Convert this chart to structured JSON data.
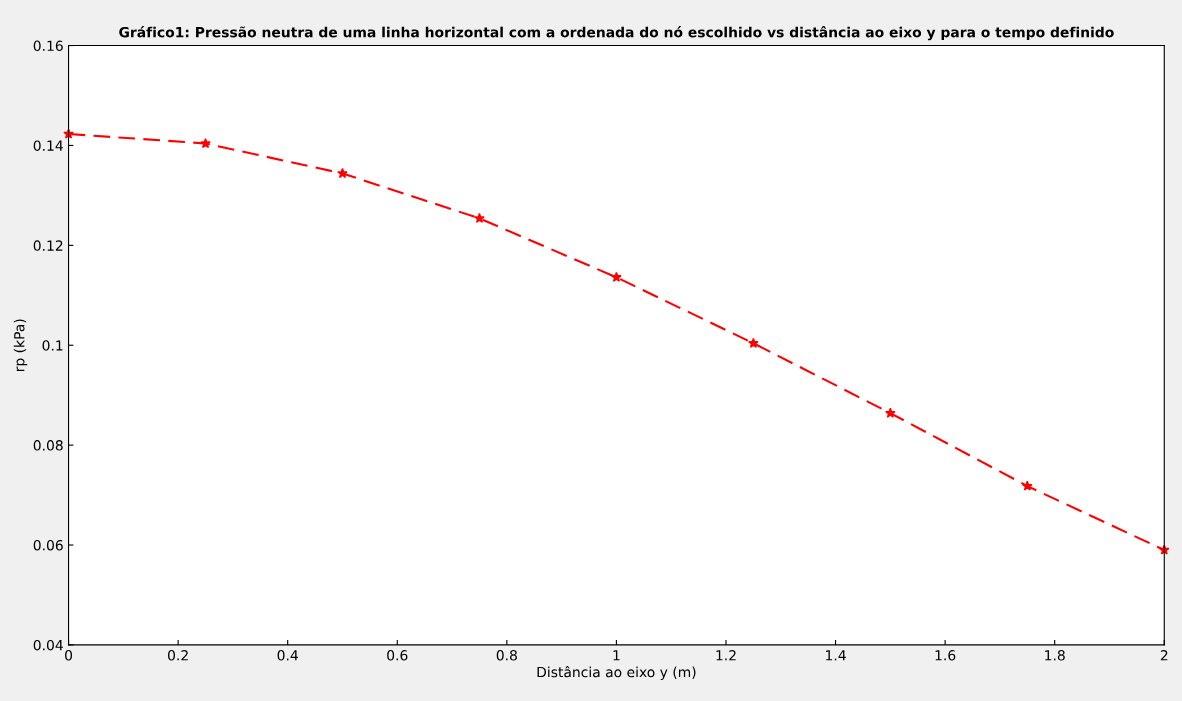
{
  "chart_data": {
    "type": "line",
    "title": "Gráfico1: Pressão neutra de uma linha horizontal com a ordenada do nó escolhido vs distância ao eixo y para o tempo definido",
    "xlabel": "Distância ao eixo y (m)",
    "ylabel": "rp (kPa)",
    "x": [
      0,
      0.25,
      0.5,
      0.75,
      1,
      1.25,
      1.5,
      1.75,
      2
    ],
    "series": [
      {
        "color": "#ff0000",
        "values": [
          0.1423,
          0.1404,
          0.1344,
          0.1254,
          0.1136,
          0.1004,
          0.0864,
          0.0718,
          0.059
        ]
      }
    ],
    "marker": "star",
    "line_style": "dashed",
    "xlim": [
      0,
      2
    ],
    "xticks": [
      0,
      0.2,
      0.4,
      0.6,
      0.8,
      1,
      1.2,
      1.4,
      1.6,
      1.8,
      2
    ],
    "ylim": [
      0.04,
      0.16
    ],
    "yticks": [
      0.04,
      0.06,
      0.08,
      0.1,
      0.12,
      0.14,
      0.16
    ],
    "grid": false,
    "legend": false
  }
}
